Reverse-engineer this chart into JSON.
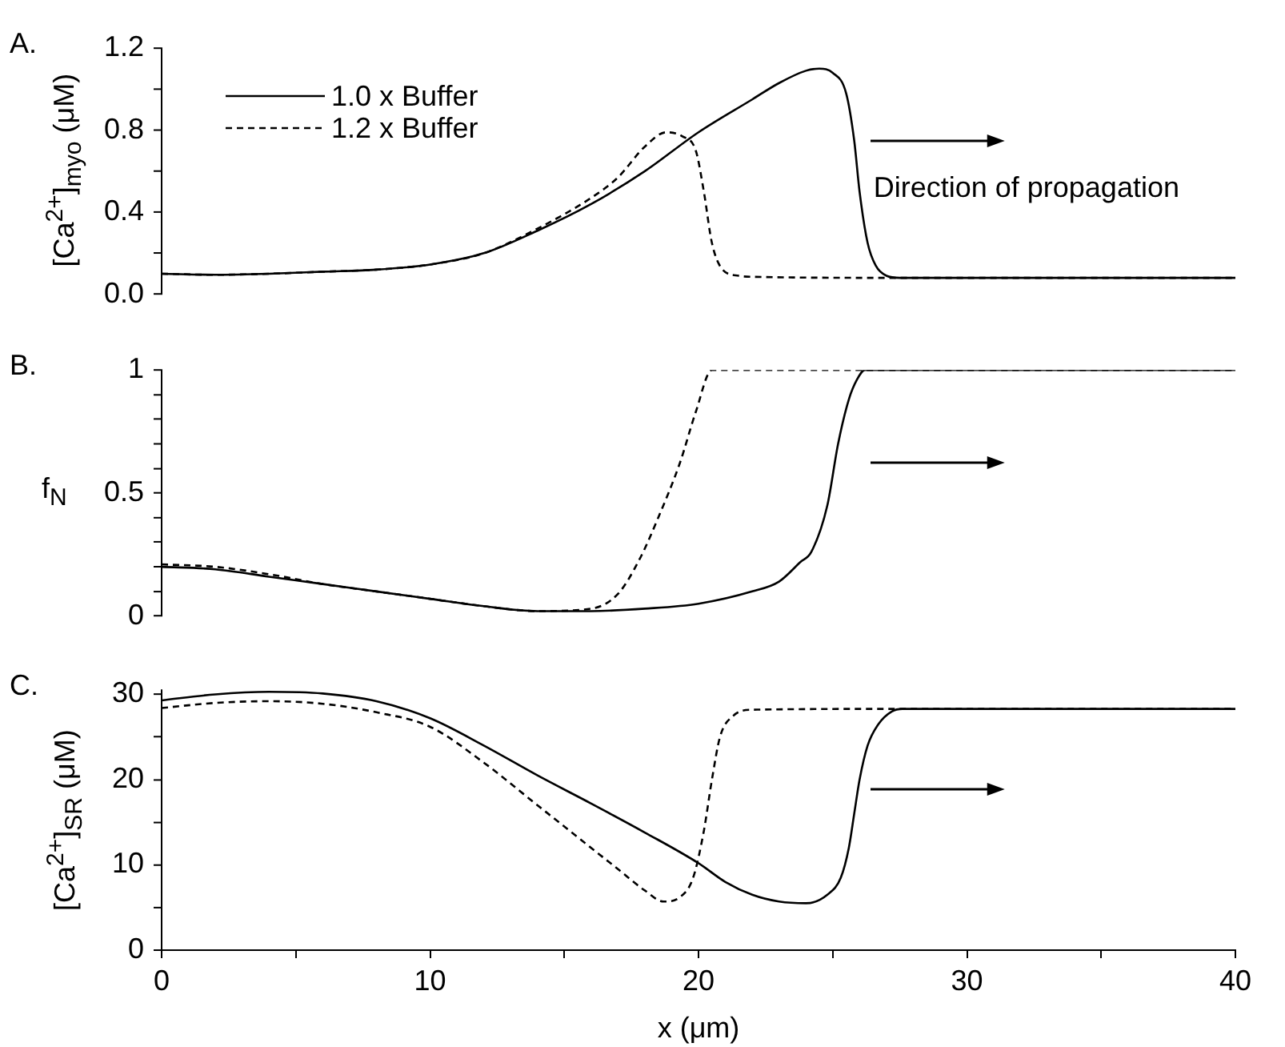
{
  "chart_data": [
    {
      "type": "line",
      "title": "A.",
      "ylabel": "[Ca$^{2+}$]$_{myo}$ (μM)",
      "xlim": [
        0,
        40
      ],
      "ylim": [
        0,
        1.2
      ],
      "yticks": [
        {
          "value": 0,
          "label": "0.0"
        },
        {
          "value": 0.2,
          "label": null
        },
        0.4,
        {
          "value": 0.6,
          "label": null
        },
        0.8,
        {
          "value": 1.0,
          "label": null
        },
        1.2
      ],
      "tick_labels": "y",
      "grid": false,
      "legend": "top left",
      "marker": "none",
      "annotations": [
        "Direction of propagation"
      ],
      "series": [
        {
          "name": "1.0 x Buffer",
          "color": "#000000",
          "line_style": "solid",
          "x": [
            0,
            2,
            4,
            6,
            8,
            10,
            12,
            14,
            16,
            18,
            20,
            22,
            23,
            24,
            24.5,
            25,
            25.5,
            25.8,
            26,
            26.3,
            26.6,
            27,
            27.5,
            30,
            35,
            40
          ],
          "values": [
            0.1,
            0.095,
            0.1,
            0.11,
            0.12,
            0.145,
            0.2,
            0.31,
            0.44,
            0.6,
            0.79,
            0.95,
            1.03,
            1.09,
            1.1,
            1.08,
            0.98,
            0.75,
            0.5,
            0.25,
            0.14,
            0.09,
            0.08,
            0.08,
            0.08,
            0.08
          ]
        },
        {
          "name": "1.2 x Buffer",
          "color": "#000000",
          "line_style": "dashed",
          "x": [
            0,
            2,
            4,
            6,
            8,
            10,
            12,
            14,
            16,
            17,
            18,
            18.8,
            19.4,
            19.9,
            20.2,
            20.5,
            20.9,
            21.5,
            22,
            27.5,
            30,
            35,
            40
          ],
          "values": [
            0.1,
            0.095,
            0.1,
            0.11,
            0.12,
            0.145,
            0.2,
            0.32,
            0.47,
            0.57,
            0.72,
            0.79,
            0.77,
            0.7,
            0.5,
            0.25,
            0.12,
            0.09,
            0.085,
            0.08,
            0.08,
            0.08,
            0.08
          ]
        }
      ]
    },
    {
      "type": "line",
      "title": "B.",
      "ylabel": "f$_{N}$",
      "xlim": [
        0,
        40
      ],
      "ylim": [
        0,
        1
      ],
      "yticks": [
        0,
        {
          "value": 0.1,
          "label": null
        },
        {
          "value": 0.2,
          "label": null
        },
        {
          "value": 0.3,
          "label": null
        },
        {
          "value": 0.4,
          "label": null
        },
        0.5,
        {
          "value": 0.6,
          "label": null
        },
        {
          "value": 0.7,
          "label": null
        },
        {
          "value": 0.8,
          "label": null
        },
        {
          "value": 0.9,
          "label": null
        },
        1
      ],
      "tick_labels": "y",
      "grid": false,
      "marker": "none",
      "series": [
        {
          "color": "#000000",
          "line_style": "solid",
          "x": [
            0,
            2,
            4,
            6,
            8,
            10,
            12,
            14,
            16,
            18,
            20,
            22,
            23,
            23.8,
            24.2,
            24.8,
            25.2,
            25.6,
            25.9,
            26.2,
            26.5,
            30,
            35,
            40
          ],
          "values": [
            0.2,
            0.19,
            0.16,
            0.13,
            0.1,
            0.07,
            0.04,
            0.02,
            0.02,
            0.03,
            0.05,
            0.1,
            0.14,
            0.22,
            0.26,
            0.45,
            0.7,
            0.88,
            0.96,
            1,
            1,
            1,
            1,
            1
          ]
        },
        {
          "color": "#000000",
          "line_style": "dashed",
          "x": [
            0,
            2,
            4,
            6,
            8,
            10,
            12,
            14,
            16,
            17,
            17.8,
            18.5,
            19.3,
            19.9,
            20.5,
            26.5,
            30,
            35,
            40
          ],
          "values": [
            0.21,
            0.2,
            0.17,
            0.13,
            0.1,
            0.07,
            0.04,
            0.02,
            0.03,
            0.09,
            0.23,
            0.4,
            0.62,
            0.83,
            1,
            1,
            1,
            1,
            1
          ]
        }
      ]
    },
    {
      "type": "line",
      "title": "C.",
      "ylabel": "[Ca$^{2+}$]$_{SR}$ (μM)",
      "xlabel": "x (μm)",
      "xlim": [
        0,
        40
      ],
      "ylim": [
        0,
        30.5
      ],
      "yticks": [
        0,
        {
          "value": 5,
          "label": null
        },
        10,
        {
          "value": 15,
          "label": null
        },
        20,
        {
          "value": 25,
          "label": null
        },
        30
      ],
      "xticks": [
        0,
        {
          "value": 5,
          "label": null
        },
        10,
        {
          "value": 15,
          "label": null
        },
        20,
        {
          "value": 25,
          "label": null
        },
        30,
        {
          "value": 35,
          "label": null
        },
        40
      ],
      "grid": false,
      "marker": "none",
      "series": [
        {
          "color": "#000000",
          "line_style": "solid",
          "x": [
            0,
            2,
            4,
            6,
            8,
            10,
            12,
            14,
            16,
            18,
            20,
            21,
            22,
            23,
            24,
            24.8,
            25.3,
            25.6,
            25.8,
            26,
            26.3,
            26.7,
            27.2,
            27.6,
            30,
            35,
            40
          ],
          "values": [
            29.3,
            30,
            30.3,
            30.1,
            29.2,
            27.2,
            24,
            20.5,
            17.2,
            13.8,
            10.2,
            8,
            6.5,
            5.7,
            5.5,
            6.5,
            8.5,
            12,
            16,
            20,
            24,
            26.5,
            28,
            28.3,
            28.3,
            28.3,
            28.3
          ]
        },
        {
          "color": "#000000",
          "line_style": "dashed",
          "x": [
            0,
            2,
            4,
            6,
            8,
            10,
            12,
            14,
            15,
            16,
            17,
            18,
            18.7,
            19.3,
            19.8,
            20.2,
            20.5,
            20.8,
            21.3,
            22,
            27.6,
            30,
            35,
            40
          ],
          "values": [
            28.4,
            29,
            29.2,
            28.9,
            27.9,
            26.2,
            22,
            17,
            14.5,
            12,
            9.5,
            7,
            5.7,
            6.2,
            8.5,
            14,
            20,
            25,
            27.5,
            28.2,
            28.3,
            28.3,
            28.3,
            28.3
          ]
        }
      ]
    }
  ]
}
